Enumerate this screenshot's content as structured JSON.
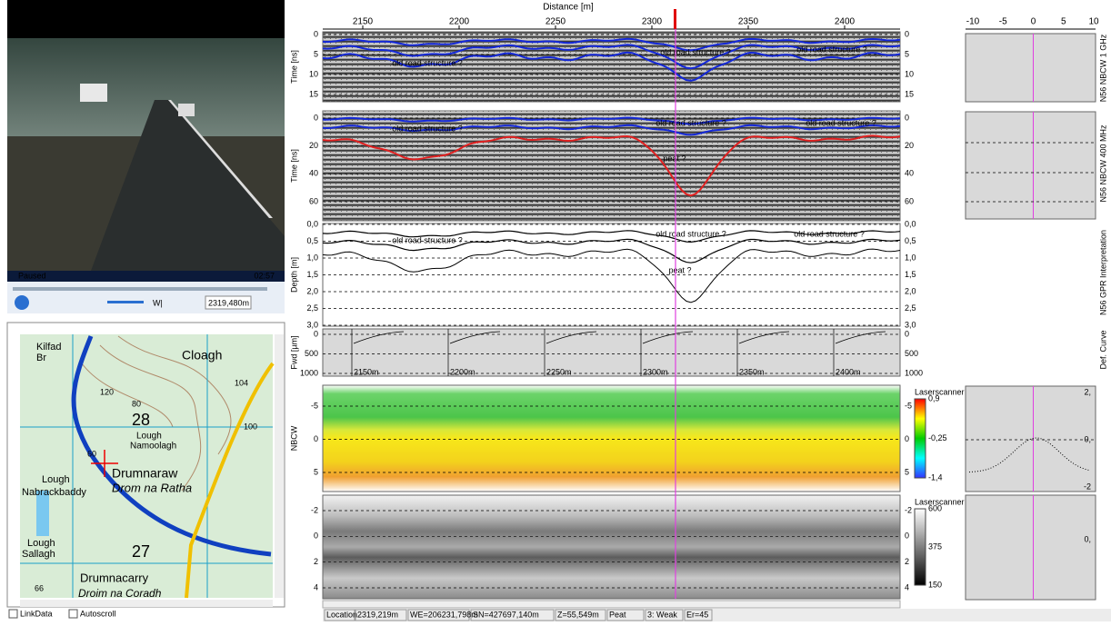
{
  "video": {
    "status": "Paused",
    "time": "02:57",
    "position": "2319,480m",
    "buttons": [
      "W|"
    ]
  },
  "map": {
    "labels": [
      "Cloagh",
      "Kilfad",
      "Br",
      "28",
      "Lough",
      "Namoolagh",
      "Drumnaraw",
      "Drom na Ratha",
      "Lough",
      "Nabrackbaddy",
      "Lough",
      "Sallagh",
      "27",
      "Drumnacarry",
      "Droim na Coradh",
      "120",
      "80",
      "104",
      "100",
      "60",
      "66"
    ]
  },
  "options": [
    "LinkData",
    "Autoscroll"
  ],
  "profile": {
    "x_title": "Distance [m]",
    "x_ticks": [
      "2150",
      "2200",
      "2250",
      "2300",
      "2350",
      "2400"
    ],
    "panels": [
      {
        "y_title": "Time [ns]",
        "y_ticks": [
          "0",
          "5",
          "10",
          "15"
        ],
        "annotations": [
          "old road structure ?",
          "old road structure ?",
          "old road structure ?"
        ],
        "side_label": "N56 NBCW 1 GHz"
      },
      {
        "y_title": "Time [ns]",
        "y_ticks": [
          "0",
          "20",
          "40",
          "60"
        ],
        "annotations": [
          "old road structure ?",
          "old road structure ?",
          "old road structure ?",
          "peat ?"
        ],
        "side_label": "N56 NBCW 400 MHz"
      },
      {
        "y_title": "Depth [m]",
        "y_ticks": [
          "0,0",
          "0,5",
          "1,0",
          "1,5",
          "2,0",
          "2,5",
          "3,0"
        ],
        "annotations": [
          "old road structure ?",
          "old road structure ?",
          "old road structure ?",
          "peat ?"
        ],
        "side_label": "N56 GPR Interpretation"
      },
      {
        "y_title": "Fwd [µm]",
        "y_ticks": [
          "0",
          "500",
          "1000"
        ],
        "markers": [
          "2150m",
          "2200m",
          "2250m",
          "2300m",
          "2350m",
          "2400m"
        ],
        "side_label": "Def. Curve"
      },
      {
        "y_title": "NBCW",
        "y_ticks": [
          "-5",
          "0",
          "5"
        ],
        "colorbar": {
          "title": "Laserscanner",
          "ticks": [
            "0,9",
            "-0,25",
            "-1,4"
          ]
        }
      },
      {
        "y_ticks": [
          "-2",
          "0",
          "2",
          "4"
        ],
        "colorbar": {
          "title": "Laserscanner",
          "ticks": [
            "600",
            "375",
            "150"
          ]
        }
      }
    ]
  },
  "side": {
    "x_ticks": [
      "-10",
      "-5",
      "0",
      "5",
      "10"
    ],
    "curve_ticks": [
      "2,",
      "0,",
      "-2"
    ],
    "scanner_ticks": [
      "0,"
    ]
  },
  "status": [
    "Location",
    "2319,219m",
    "WE=206231,798m",
    "SN=427697,140m",
    "Z=55,549m",
    "Peat",
    "3: Weak",
    "Er=45"
  ]
}
